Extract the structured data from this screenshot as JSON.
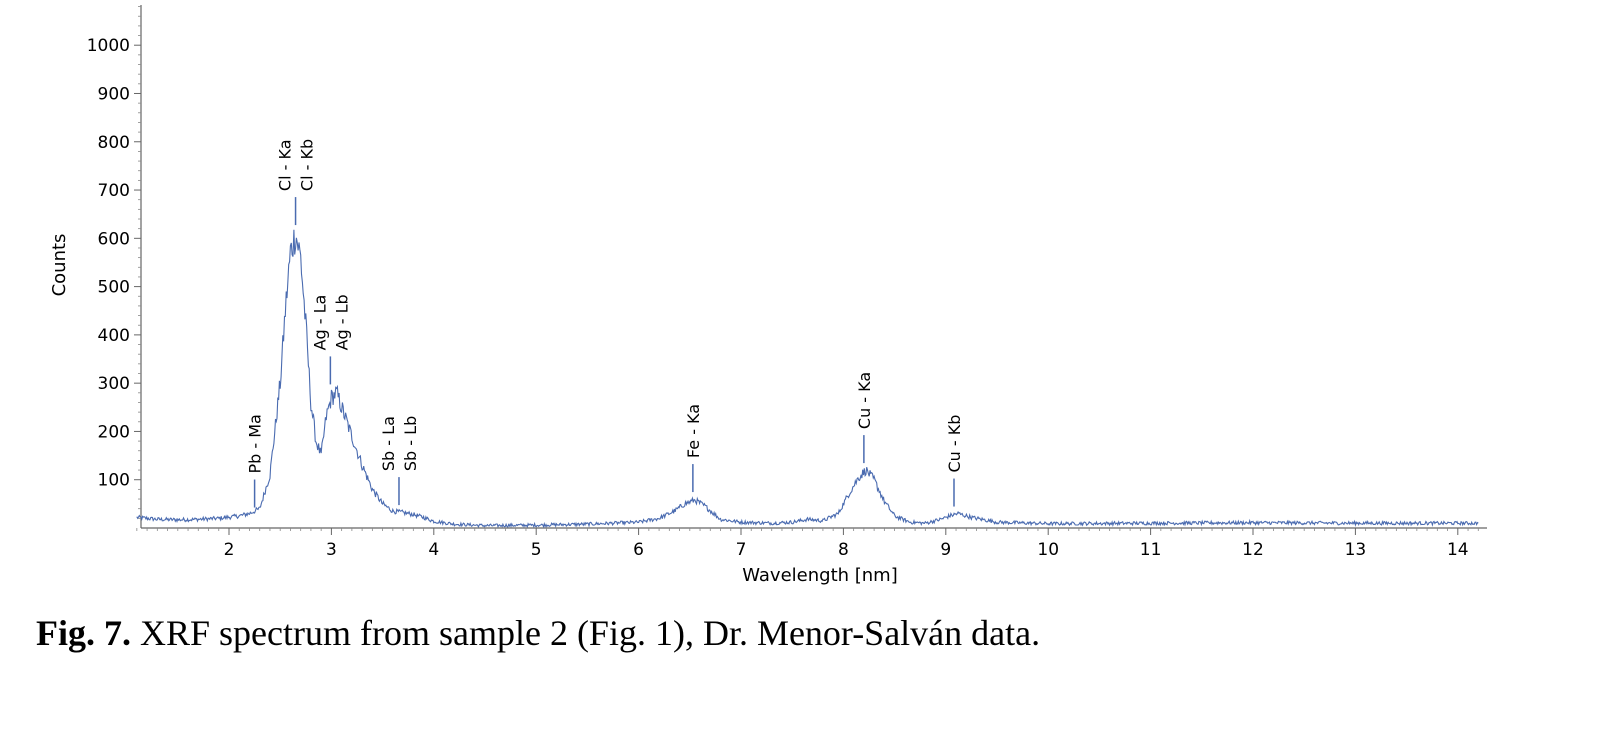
{
  "chart_data": {
    "type": "line",
    "title": "",
    "xlabel": "Wavelength [nm]",
    "ylabel": "Counts",
    "xlim": [
      1.1,
      14.2
    ],
    "ylim": [
      0,
      1100
    ],
    "x_ticks": [
      2,
      3,
      4,
      5,
      6,
      7,
      8,
      9,
      10,
      11,
      12,
      13,
      14
    ],
    "y_ticks": [
      100,
      200,
      300,
      400,
      500,
      600,
      700,
      800,
      900,
      1000
    ],
    "grid": false,
    "line_color": "#4a6bb0",
    "series": [
      {
        "x": [
          1.1,
          1.3,
          1.5,
          1.7,
          1.9,
          2.1,
          2.2,
          2.3,
          2.4,
          2.5,
          2.55,
          2.6,
          2.65,
          2.7,
          2.75,
          2.8,
          2.85,
          2.9,
          2.95,
          3.0,
          3.05,
          3.1,
          3.2,
          3.3,
          3.4,
          3.5,
          3.6,
          3.7,
          3.8,
          3.9,
          4.0,
          4.2,
          4.5,
          5.0,
          5.5,
          6.0,
          6.2,
          6.35,
          6.45,
          6.55,
          6.65,
          6.8,
          7.0,
          7.3,
          7.5,
          7.65,
          7.8,
          7.95,
          8.05,
          8.15,
          8.22,
          8.3,
          8.4,
          8.5,
          8.65,
          8.8,
          8.95,
          9.05,
          9.12,
          9.25,
          9.5,
          10.0,
          11.0,
          12.0,
          13.0,
          14.2
        ],
        "y": [
          22,
          18,
          17,
          18,
          20,
          25,
          30,
          40,
          110,
          300,
          450,
          570,
          610,
          560,
          420,
          260,
          180,
          150,
          230,
          270,
          280,
          250,
          190,
          130,
          80,
          50,
          35,
          32,
          28,
          22,
          14,
          8,
          5,
          6,
          8,
          12,
          20,
          35,
          50,
          58,
          45,
          18,
          12,
          10,
          12,
          18,
          15,
          30,
          70,
          105,
          120,
          100,
          55,
          25,
          12,
          10,
          18,
          26,
          30,
          22,
          12,
          9,
          10,
          11,
          10,
          10
        ]
      }
    ],
    "annotations": [
      {
        "x": 2.25,
        "y": 30,
        "labels": [
          "Pb - Ma"
        ]
      },
      {
        "x": 2.65,
        "y": 615,
        "labels": [
          "Cl - Ka",
          "Cl - Kb"
        ]
      },
      {
        "x": 2.99,
        "y": 285,
        "labels": [
          "Ag - La",
          "Ag - Lb"
        ]
      },
      {
        "x": 3.66,
        "y": 35,
        "labels": [
          "Sb - La",
          "Sb - Lb"
        ]
      },
      {
        "x": 6.53,
        "y": 62,
        "labels": [
          "Fe - Ka"
        ]
      },
      {
        "x": 8.2,
        "y": 122,
        "labels": [
          "Cu - Ka"
        ]
      },
      {
        "x": 9.08,
        "y": 32,
        "labels": [
          "Cu - Kb"
        ]
      }
    ]
  },
  "caption": {
    "figure_number": "Fig. 7.",
    "text": " XRF spectrum from sample 2 (Fig. 1), Dr. Menor-Salván data."
  }
}
